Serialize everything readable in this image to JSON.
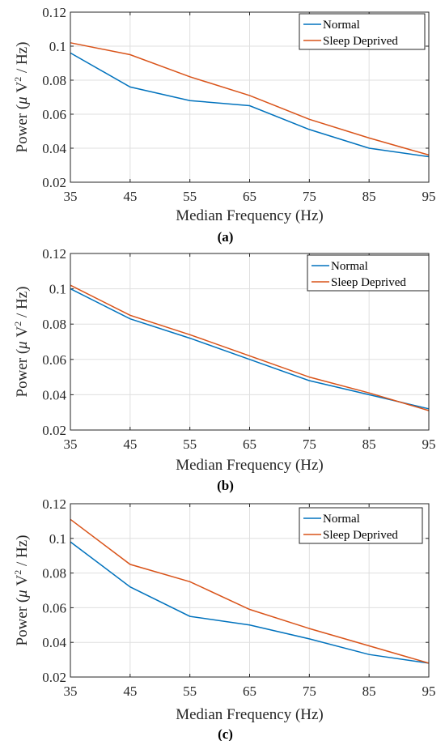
{
  "colors": {
    "normal": "#0072BD",
    "sleep_deprived": "#D95319"
  },
  "chart_data": [
    {
      "type": "line",
      "caption": "(a)",
      "xlabel": "Median Frequency (Hz)",
      "ylabel_parts": [
        "Power (",
        "μ",
        " V",
        "2",
        " / Hz)"
      ],
      "x": [
        35,
        45,
        55,
        65,
        75,
        85,
        95
      ],
      "xlim": [
        35,
        95
      ],
      "ylim": [
        0.02,
        0.12
      ],
      "xticks": [
        "35",
        "45",
        "55",
        "65",
        "75",
        "85",
        "95"
      ],
      "yticks": [
        "0.02",
        "0.04",
        "0.06",
        "0.08",
        "0.1",
        "0.12"
      ],
      "grid": true,
      "legend_position": "top-right",
      "series": [
        {
          "name": "Normal",
          "color_key": "normal",
          "values": [
            0.096,
            0.076,
            0.068,
            0.065,
            0.051,
            0.04,
            0.035
          ]
        },
        {
          "name": "Sleep Deprived",
          "color_key": "sleep_deprived",
          "values": [
            0.102,
            0.095,
            0.082,
            0.071,
            0.057,
            0.046,
            0.036
          ]
        }
      ]
    },
    {
      "type": "line",
      "caption": "(b)",
      "xlabel": "Median Frequency (Hz)",
      "ylabel_parts": [
        "Power (",
        "μ",
        " V",
        "2",
        " / Hz)"
      ],
      "x": [
        35,
        45,
        55,
        65,
        75,
        85,
        95
      ],
      "xlim": [
        35,
        95
      ],
      "ylim": [
        0.02,
        0.12
      ],
      "xticks": [
        "35",
        "45",
        "55",
        "65",
        "75",
        "85",
        "95"
      ],
      "yticks": [
        "0.02",
        "0.04",
        "0.06",
        "0.08",
        "0.1",
        "0.12"
      ],
      "grid": true,
      "legend_position": "top-right",
      "series": [
        {
          "name": "Normal",
          "color_key": "normal",
          "values": [
            0.1,
            0.083,
            0.072,
            0.06,
            0.048,
            0.04,
            0.032
          ]
        },
        {
          "name": "Sleep Deprived",
          "color_key": "sleep_deprived",
          "values": [
            0.102,
            0.085,
            0.074,
            0.062,
            0.05,
            0.041,
            0.031
          ]
        }
      ]
    },
    {
      "type": "line",
      "caption": "(c)",
      "xlabel": "Median Frequency (Hz)",
      "ylabel_parts": [
        "Power (",
        "μ",
        " V",
        "2",
        " / Hz)"
      ],
      "x": [
        35,
        45,
        55,
        65,
        75,
        85,
        95
      ],
      "xlim": [
        35,
        95
      ],
      "ylim": [
        0.02,
        0.12
      ],
      "xticks": [
        "35",
        "45",
        "55",
        "65",
        "75",
        "85",
        "95"
      ],
      "yticks": [
        "0.02",
        "0.04",
        "0.06",
        "0.08",
        "0.1",
        "0.12"
      ],
      "grid": true,
      "legend_position": "top-right",
      "series": [
        {
          "name": "Normal",
          "color_key": "normal",
          "values": [
            0.098,
            0.072,
            0.055,
            0.05,
            0.042,
            0.033,
            0.028
          ]
        },
        {
          "name": "Sleep Deprived",
          "color_key": "sleep_deprived",
          "values": [
            0.111,
            0.085,
            0.075,
            0.059,
            0.048,
            0.038,
            0.028
          ]
        }
      ]
    }
  ]
}
